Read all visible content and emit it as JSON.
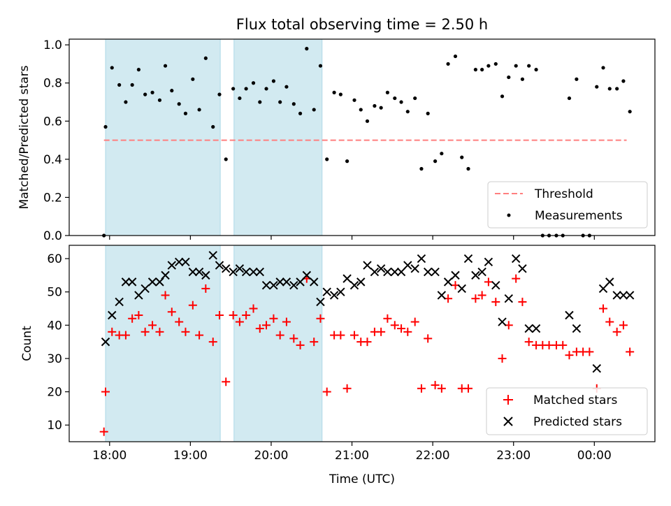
{
  "title": "Flux total observing time = 2.50 h",
  "colors": {
    "shade": "#add8e6",
    "threshold": "#ff7f7f",
    "matched": "#ff0000",
    "predicted": "#000000",
    "measurement": "#000000"
  },
  "chart_data": [
    {
      "type": "scatter",
      "panel": "top",
      "ylabel": "Matched/Predicted stars",
      "xlim": [
        -0.5,
        6.75
      ],
      "ylim": [
        0,
        1.03
      ],
      "yticks": [
        0.0,
        0.2,
        0.4,
        0.6,
        0.8,
        1.0
      ],
      "ytick_labels": [
        "0.0",
        "0.2",
        "0.4",
        "0.6",
        "0.8",
        "1.0"
      ],
      "shaded_ranges": [
        [
          -0.05,
          1.37
        ],
        [
          1.54,
          2.63
        ]
      ],
      "threshold": {
        "name": "Threshold",
        "value": 0.5,
        "x_range": [
          -0.07,
          6.4
        ]
      },
      "legend": {
        "placement": "lower right",
        "entries": [
          "Threshold",
          "Measurements"
        ]
      },
      "series": [
        {
          "name": "Measurements",
          "x": [
            -0.07,
            -0.05,
            0.03,
            0.12,
            0.2,
            0.28,
            0.36,
            0.44,
            0.53,
            0.62,
            0.69,
            0.77,
            0.86,
            0.94,
            1.03,
            1.11,
            1.19,
            1.28,
            1.36,
            1.44,
            1.53,
            1.61,
            1.69,
            1.78,
            1.86,
            1.94,
            2.03,
            2.11,
            2.19,
            2.28,
            2.36,
            2.44,
            2.53,
            2.61,
            2.69,
            2.78,
            2.86,
            2.94,
            3.03,
            3.11,
            3.19,
            3.28,
            3.36,
            3.44,
            3.53,
            3.61,
            3.69,
            3.78,
            3.86,
            3.94,
            4.03,
            4.11,
            4.19,
            4.28,
            4.36,
            4.44,
            4.53,
            4.61,
            4.69,
            4.78,
            4.86,
            4.94,
            5.03,
            5.11,
            5.19,
            5.28,
            5.36,
            5.44,
            5.53,
            5.61,
            5.69,
            5.78,
            5.86,
            5.94,
            6.03,
            6.11,
            6.19,
            6.28,
            6.36,
            6.44
          ],
          "y": [
            0.0,
            0.57,
            0.88,
            0.79,
            0.7,
            0.79,
            0.87,
            0.74,
            0.75,
            0.71,
            0.89,
            0.76,
            0.69,
            0.64,
            0.82,
            0.66,
            0.93,
            0.57,
            0.74,
            0.4,
            0.77,
            0.72,
            0.77,
            0.8,
            0.7,
            0.77,
            0.81,
            0.7,
            0.78,
            0.69,
            0.64,
            0.98,
            0.66,
            0.89,
            0.4,
            0.75,
            0.74,
            0.39,
            0.71,
            0.66,
            0.6,
            0.68,
            0.67,
            0.75,
            0.72,
            0.7,
            0.65,
            0.72,
            0.35,
            0.64,
            0.39,
            0.43,
            0.9,
            0.94,
            0.41,
            0.35,
            0.87,
            0.87,
            0.89,
            0.9,
            0.73,
            0.83,
            0.89,
            0.82,
            0.89,
            0.87,
            0.0,
            0.0,
            0.0,
            0.0,
            0.72,
            0.82,
            0.0,
            0.0,
            0.78,
            0.88,
            0.77,
            0.77,
            0.81,
            0.65
          ]
        }
      ]
    },
    {
      "type": "scatter",
      "panel": "bottom",
      "title": "",
      "xlabel": "Time (UTC)",
      "ylabel": "Count",
      "xlim": [
        -0.5,
        6.75
      ],
      "ylim": [
        5,
        64
      ],
      "yticks": [
        10,
        20,
        30,
        40,
        50,
        60
      ],
      "ytick_labels": [
        "10",
        "20",
        "30",
        "40",
        "50",
        "60"
      ],
      "xticks": [
        0,
        1,
        2,
        3,
        4,
        5,
        6
      ],
      "xtick_labels": [
        "18:00",
        "19:00",
        "20:00",
        "21:00",
        "22:00",
        "23:00",
        "00:00"
      ],
      "shaded_ranges": [
        [
          -0.05,
          1.37
        ],
        [
          1.54,
          2.63
        ]
      ],
      "legend": {
        "placement": "lower right",
        "entries": [
          "Matched stars",
          "Predicted stars"
        ]
      },
      "x": [
        -0.07,
        -0.05,
        0.03,
        0.12,
        0.2,
        0.28,
        0.36,
        0.44,
        0.53,
        0.62,
        0.69,
        0.77,
        0.86,
        0.94,
        1.03,
        1.11,
        1.19,
        1.28,
        1.36,
        1.44,
        1.53,
        1.61,
        1.69,
        1.78,
        1.86,
        1.94,
        2.03,
        2.11,
        2.19,
        2.28,
        2.36,
        2.44,
        2.53,
        2.61,
        2.69,
        2.78,
        2.86,
        2.94,
        3.03,
        3.11,
        3.19,
        3.28,
        3.36,
        3.44,
        3.53,
        3.61,
        3.69,
        3.78,
        3.86,
        3.94,
        4.03,
        4.11,
        4.19,
        4.28,
        4.36,
        4.44,
        4.53,
        4.61,
        4.69,
        4.78,
        4.86,
        4.94,
        5.03,
        5.11,
        5.19,
        5.28,
        5.36,
        5.44,
        5.53,
        5.61,
        5.69,
        5.78,
        5.86,
        5.94,
        6.03,
        6.11,
        6.19,
        6.28,
        6.36,
        6.44
      ],
      "series": [
        {
          "name": "Matched stars",
          "marker": "plus",
          "values": [
            8,
            20,
            38,
            37,
            37,
            42,
            43,
            38,
            40,
            38,
            49,
            44,
            41,
            38,
            46,
            37,
            51,
            35,
            43,
            23,
            43,
            41,
            43,
            45,
            39,
            40,
            42,
            37,
            41,
            36,
            34,
            54,
            35,
            42,
            20,
            37,
            37,
            21,
            37,
            35,
            35,
            38,
            38,
            42,
            40,
            39,
            38,
            41,
            21,
            36,
            22,
            21,
            48,
            52,
            21,
            21,
            48,
            49,
            53,
            47,
            30,
            40,
            54,
            47,
            35,
            34,
            34,
            34,
            34,
            34,
            31,
            32,
            32,
            32,
            21,
            45,
            41,
            38,
            40,
            32
          ]
        },
        {
          "name": "Predicted stars",
          "marker": "x",
          "values": [
            null,
            35,
            43,
            47,
            53,
            53,
            49,
            51,
            53,
            53,
            55,
            58,
            59,
            59,
            56,
            56,
            55,
            61,
            58,
            57,
            56,
            57,
            56,
            56,
            56,
            52,
            52,
            53,
            53,
            52,
            53,
            55,
            53,
            47,
            50,
            49,
            50,
            54,
            52,
            53,
            58,
            56,
            57,
            56,
            56,
            56,
            58,
            57,
            60,
            56,
            56,
            49,
            53,
            55,
            51,
            60,
            55,
            56,
            59,
            52,
            41,
            48,
            60,
            57,
            39,
            39,
            null,
            null,
            null,
            null,
            43,
            39,
            null,
            null,
            27,
            51,
            53,
            49,
            49,
            49
          ]
        }
      ]
    }
  ]
}
